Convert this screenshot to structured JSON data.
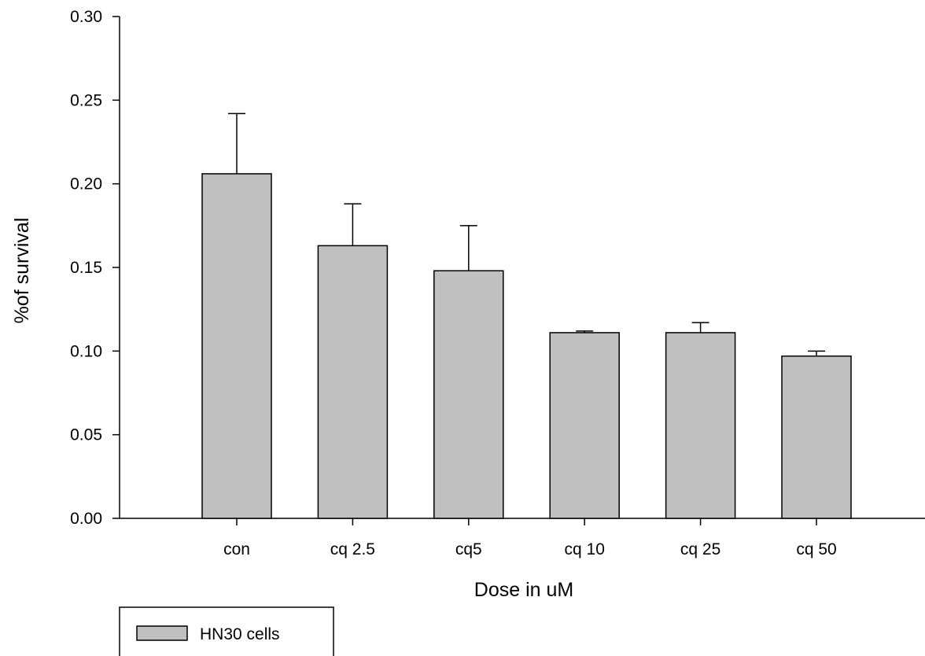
{
  "chart_data": {
    "type": "bar",
    "title": "",
    "xlabel": "Dose in uM",
    "ylabel": "%of survival",
    "ylim": [
      0,
      0.3
    ],
    "yticks": [
      "0.00",
      "0.05",
      "0.10",
      "0.15",
      "0.20",
      "0.25",
      "0.30"
    ],
    "categories": [
      "con",
      "cq 2.5",
      "cq5",
      "cq 10",
      "cq 25",
      "cq 50"
    ],
    "series": [
      {
        "name": "HN30 cells",
        "values": [
          0.206,
          0.163,
          0.148,
          0.111,
          0.111,
          0.097
        ],
        "error_upper": [
          0.036,
          0.025,
          0.027,
          0.001,
          0.006,
          0.003
        ]
      }
    ],
    "grid": false,
    "legend_position": "bottom-left",
    "colors": {
      "bar_fill": "#c0c0c0",
      "bar_stroke": "#000000",
      "axis": "#000000"
    }
  }
}
